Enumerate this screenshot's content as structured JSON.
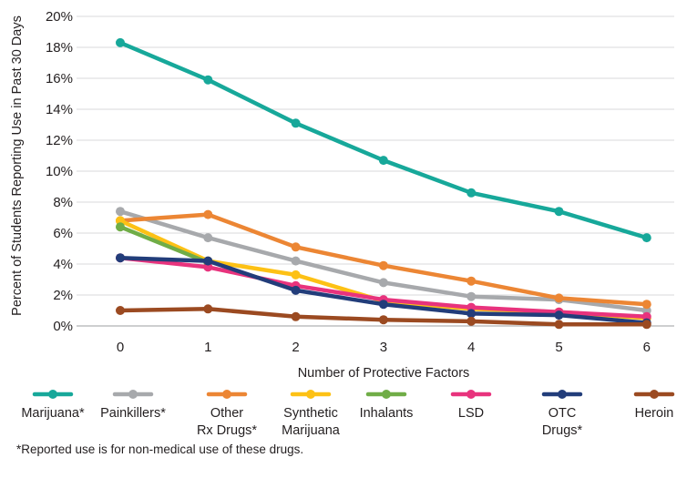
{
  "chart_data": {
    "type": "line",
    "xlabel": "Number of Protective Factors",
    "ylabel": "Percent of Students Reporting Use in Past 30 Days",
    "x": [
      0,
      1,
      2,
      3,
      4,
      5,
      6
    ],
    "ylim": [
      0,
      20
    ],
    "yticks": [
      0,
      2,
      4,
      6,
      8,
      10,
      12,
      14,
      16,
      18,
      20
    ],
    "ytick_labels": [
      "0%",
      "2%",
      "4%",
      "6%",
      "8%",
      "10%",
      "12%",
      "14%",
      "16%",
      "18%",
      "20%"
    ],
    "grid": true,
    "legend_position": "bottom",
    "series": [
      {
        "name": "Marijuana*",
        "legend_lines": [
          "Marijuana*"
        ],
        "color": "#17a89a",
        "values": [
          18.3,
          15.9,
          13.1,
          10.7,
          8.6,
          7.4,
          5.7
        ]
      },
      {
        "name": "Painkillers*",
        "legend_lines": [
          "Painkillers*"
        ],
        "color": "#a7a9ac",
        "values": [
          7.4,
          5.7,
          4.2,
          2.8,
          1.9,
          1.7,
          1.0
        ]
      },
      {
        "name": "Other Rx Drugs*",
        "legend_lines": [
          "Other",
          "Rx Drugs*"
        ],
        "color": "#ec8634",
        "values": [
          6.8,
          7.2,
          5.1,
          3.9,
          2.9,
          1.8,
          1.4
        ]
      },
      {
        "name": "Synthetic Marijuana",
        "legend_lines": [
          "Synthetic",
          "Marijuana"
        ],
        "color": "#fdc115",
        "values": [
          6.8,
          4.2,
          3.3,
          1.6,
          1.1,
          0.9,
          0.5
        ]
      },
      {
        "name": "Inhalants",
        "legend_lines": [
          "Inhalants"
        ],
        "color": "#70ad47",
        "values": [
          6.4,
          4.1,
          null,
          null,
          null,
          null,
          null
        ]
      },
      {
        "name": "LSD",
        "legend_lines": [
          "LSD"
        ],
        "color": "#e8337d",
        "values": [
          4.4,
          3.8,
          2.6,
          1.7,
          1.2,
          0.9,
          0.6
        ]
      },
      {
        "name": "OTC Drugs*",
        "legend_lines": [
          "OTC",
          "Drugs*"
        ],
        "color": "#223d7a",
        "values": [
          4.4,
          4.2,
          2.3,
          1.4,
          0.8,
          0.7,
          0.2
        ]
      },
      {
        "name": "Heroin",
        "legend_lines": [
          "Heroin"
        ],
        "color": "#9b4a21",
        "values": [
          1.0,
          1.1,
          0.6,
          0.4,
          0.3,
          0.1,
          0.1
        ]
      }
    ]
  },
  "footnote": "*Reported use is for non-medical use of these drugs."
}
